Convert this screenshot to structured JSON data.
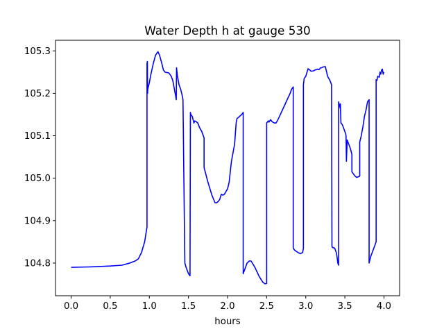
{
  "chart_data": {
    "type": "line",
    "title": "Water Depth h at gauge 530",
    "xlabel": "hours",
    "ylabel": "",
    "xlim": [
      -0.2,
      4.2
    ],
    "ylim": [
      104.723,
      105.325
    ],
    "xticks": [
      0.0,
      0.5,
      1.0,
      1.5,
      2.0,
      2.5,
      3.0,
      3.5,
      4.0
    ],
    "xtick_labels": [
      "0.0",
      "0.5",
      "1.0",
      "1.5",
      "2.0",
      "2.5",
      "3.0",
      "3.5",
      "4.0"
    ],
    "yticks": [
      104.8,
      104.9,
      105.0,
      105.1,
      105.2,
      105.3
    ],
    "ytick_labels": [
      "104.8",
      "104.9",
      "105.0",
      "105.1",
      "105.2",
      "105.3"
    ],
    "grid": false,
    "series": [
      {
        "color": "#0000ff",
        "x": [
          0.0,
          0.25,
          0.5,
          0.65,
          0.75,
          0.82,
          0.86,
          0.9,
          0.94,
          0.97,
          0.97,
          0.975,
          0.977,
          0.98,
          1.0,
          1.02,
          1.05,
          1.08,
          1.11,
          1.13,
          1.16,
          1.18,
          1.2,
          1.25,
          1.28,
          1.3,
          1.32,
          1.34,
          1.344,
          1.348,
          1.36,
          1.38,
          1.4,
          1.42,
          1.43,
          1.454,
          1.47,
          1.5,
          1.52,
          1.525,
          1.53,
          1.55,
          1.57,
          1.58,
          1.6,
          1.62,
          1.64,
          1.67,
          1.69,
          1.7,
          1.7,
          1.75,
          1.8,
          1.84,
          1.86,
          1.88,
          1.9,
          1.92,
          1.94,
          1.96,
          2.0,
          2.02,
          2.05,
          2.07,
          2.09,
          2.11,
          2.11,
          2.12,
          2.15,
          2.18,
          2.2,
          2.2,
          2.22,
          2.25,
          2.28,
          2.3,
          2.35,
          2.4,
          2.45,
          2.48,
          2.5,
          2.5,
          2.52,
          2.53,
          2.55,
          2.57,
          2.6,
          2.62,
          2.65,
          2.7,
          2.75,
          2.8,
          2.82,
          2.84,
          2.84,
          2.86,
          2.9,
          2.93,
          2.96,
          2.97,
          2.97,
          2.98,
          3.0,
          3.03,
          3.05,
          3.07,
          3.1,
          3.12,
          3.15,
          3.17,
          3.19,
          3.2,
          3.22,
          3.25,
          3.28,
          3.31,
          3.33,
          3.335,
          3.34,
          3.37,
          3.39,
          3.4,
          3.41,
          3.42,
          3.42,
          3.44,
          3.443,
          3.45,
          3.46,
          3.47,
          3.49,
          3.51,
          3.515,
          3.52,
          3.53,
          3.55,
          3.57,
          3.585,
          3.59,
          3.59,
          3.61,
          3.63,
          3.65,
          3.67,
          3.69,
          3.69,
          3.71,
          3.73,
          3.75,
          3.77,
          3.79,
          3.81,
          3.81,
          3.83,
          3.86,
          3.88,
          3.9,
          3.9,
          3.91,
          3.92,
          3.94,
          3.95,
          3.96,
          3.97,
          3.98,
          3.99,
          4.0
        ],
        "y": [
          104.79,
          104.791,
          104.793,
          104.795,
          104.8,
          104.805,
          104.81,
          104.825,
          104.85,
          104.885,
          105.27,
          105.275,
          105.2,
          105.21,
          105.225,
          105.245,
          105.27,
          105.29,
          105.298,
          105.29,
          105.27,
          105.255,
          105.25,
          105.248,
          105.24,
          105.23,
          105.21,
          105.19,
          105.185,
          105.26,
          105.24,
          105.22,
          105.21,
          105.195,
          105.185,
          104.8,
          104.79,
          104.775,
          104.77,
          105.155,
          105.15,
          105.145,
          105.13,
          105.135,
          105.133,
          105.13,
          105.12,
          105.11,
          105.1,
          105.095,
          105.025,
          104.99,
          104.96,
          104.942,
          104.942,
          104.945,
          104.95,
          104.962,
          104.96,
          104.962,
          104.975,
          104.99,
          105.04,
          105.06,
          105.08,
          105.13,
          105.13,
          105.14,
          105.145,
          105.15,
          105.155,
          104.775,
          104.785,
          104.8,
          104.805,
          104.805,
          104.79,
          104.77,
          104.755,
          104.751,
          104.752,
          105.13,
          105.135,
          105.132,
          105.138,
          105.133,
          105.13,
          105.13,
          105.14,
          105.16,
          105.18,
          105.2,
          105.21,
          105.215,
          104.835,
          104.83,
          104.825,
          104.822,
          104.825,
          104.835,
          105.22,
          105.235,
          105.24,
          105.258,
          105.255,
          105.252,
          105.253,
          105.255,
          105.257,
          105.256,
          105.26,
          105.26,
          105.262,
          105.263,
          105.24,
          105.23,
          105.22,
          104.84,
          104.837,
          104.835,
          104.825,
          104.815,
          104.8,
          104.795,
          105.18,
          105.165,
          105.175,
          105.13,
          105.128,
          105.125,
          105.115,
          105.105,
          105.1,
          105.04,
          105.09,
          105.08,
          105.07,
          105.06,
          105.055,
          105.015,
          105.01,
          105.005,
          105.002,
          105.003,
          105.005,
          105.085,
          105.1,
          105.12,
          105.145,
          105.16,
          105.18,
          105.185,
          104.8,
          104.815,
          104.83,
          104.84,
          104.85,
          105.232,
          105.23,
          105.24,
          105.238,
          105.25,
          105.245,
          105.255,
          105.257,
          105.245,
          105.25
        ]
      }
    ]
  }
}
